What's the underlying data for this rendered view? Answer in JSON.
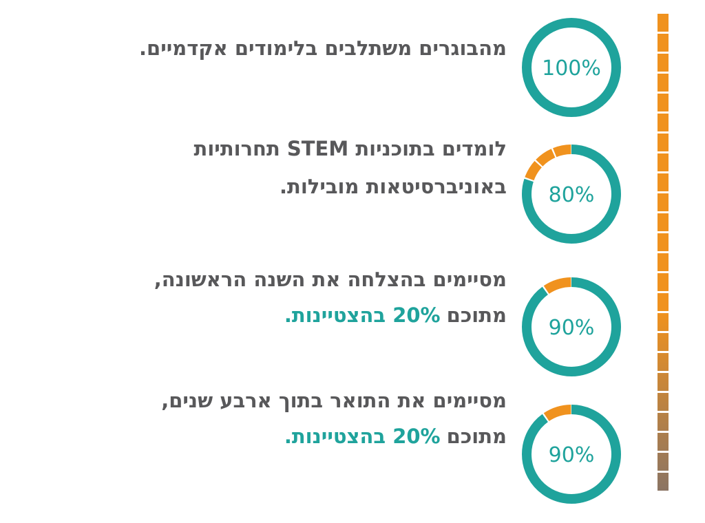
{
  "items": [
    {
      "lines": [
        {
          "text": "מהבוגרים משתלבים בלימודים אקדמיים."
        }
      ],
      "value": 100,
      "value_label": "100%"
    },
    {
      "lines": [
        {
          "text": "לומדים בתוכניות STEM תחרותיות"
        },
        {
          "text": "באוניברסיטאות מובילות."
        }
      ],
      "value": 80,
      "value_label": "80%"
    },
    {
      "lines": [
        {
          "text": "מסיימים בהצלחה את השנה הראשונה,"
        },
        {
          "text": "מתוכם",
          "highlight": "20% בהצטיינות."
        }
      ],
      "value": 90,
      "value_label": "90%"
    },
    {
      "lines": [
        {
          "text": "מסיימים את התואר בתוך ארבע שנים,"
        },
        {
          "text": "מתוכם",
          "highlight": "20% בהצטיינות."
        }
      ],
      "value": 90,
      "value_label": "90%"
    }
  ]
}
